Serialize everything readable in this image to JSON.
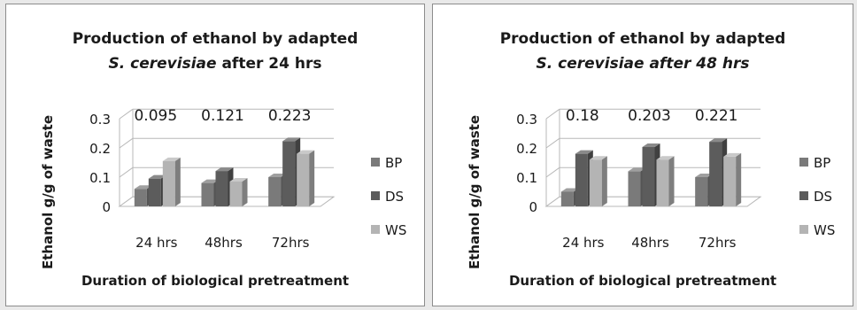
{
  "colors": {
    "BP": "#7a7a7a",
    "DS": "#5c5c5c",
    "WS": "#b4b4b4",
    "grid": "#b8b8b8",
    "text": "#1a1a1a"
  },
  "chart_data": [
    {
      "type": "bar",
      "title_line1": "Production of ethanol by adapted",
      "title_species": "S. cerevisiae",
      "title_rest": " after 24 hrs",
      "xlabel": "Duration of biological pretreatment",
      "ylabel": "Ethanol g/g of waste",
      "categories": [
        "24 hrs",
        "48hrs",
        "72hrs"
      ],
      "y_ticks": [
        "0.3",
        "0.2",
        "0.1",
        "0"
      ],
      "ylim": [
        0,
        0.3
      ],
      "series": [
        {
          "name": "BP",
          "values": [
            0.06,
            0.08,
            0.1
          ]
        },
        {
          "name": "DS",
          "values": [
            0.095,
            0.121,
            0.223
          ]
        },
        {
          "name": "WS",
          "values": [
            0.155,
            0.085,
            0.18
          ]
        }
      ],
      "data_labels": [
        "0.095",
        "0.121",
        "0.223"
      ],
      "legend_position": "right",
      "grid": true
    },
    {
      "type": "bar",
      "title_line1": "Production of ethanol by adapted",
      "title_species": "S. cerevisiae after 48 hrs",
      "title_rest": "",
      "xlabel": "Duration of biological pretreatment",
      "ylabel": "Ethanol g/g of waste",
      "categories": [
        "24 hrs",
        "48hrs",
        "72hrs"
      ],
      "y_ticks": [
        "0.3",
        "0.2",
        "0.1",
        "0"
      ],
      "ylim": [
        0,
        0.3
      ],
      "series": [
        {
          "name": "BP",
          "values": [
            0.05,
            0.12,
            0.1
          ]
        },
        {
          "name": "DS",
          "values": [
            0.18,
            0.203,
            0.221
          ]
        },
        {
          "name": "WS",
          "values": [
            0.16,
            0.16,
            0.17
          ]
        }
      ],
      "data_labels": [
        "0.18",
        "0.203",
        "0.221"
      ],
      "legend_position": "right",
      "grid": true
    }
  ]
}
